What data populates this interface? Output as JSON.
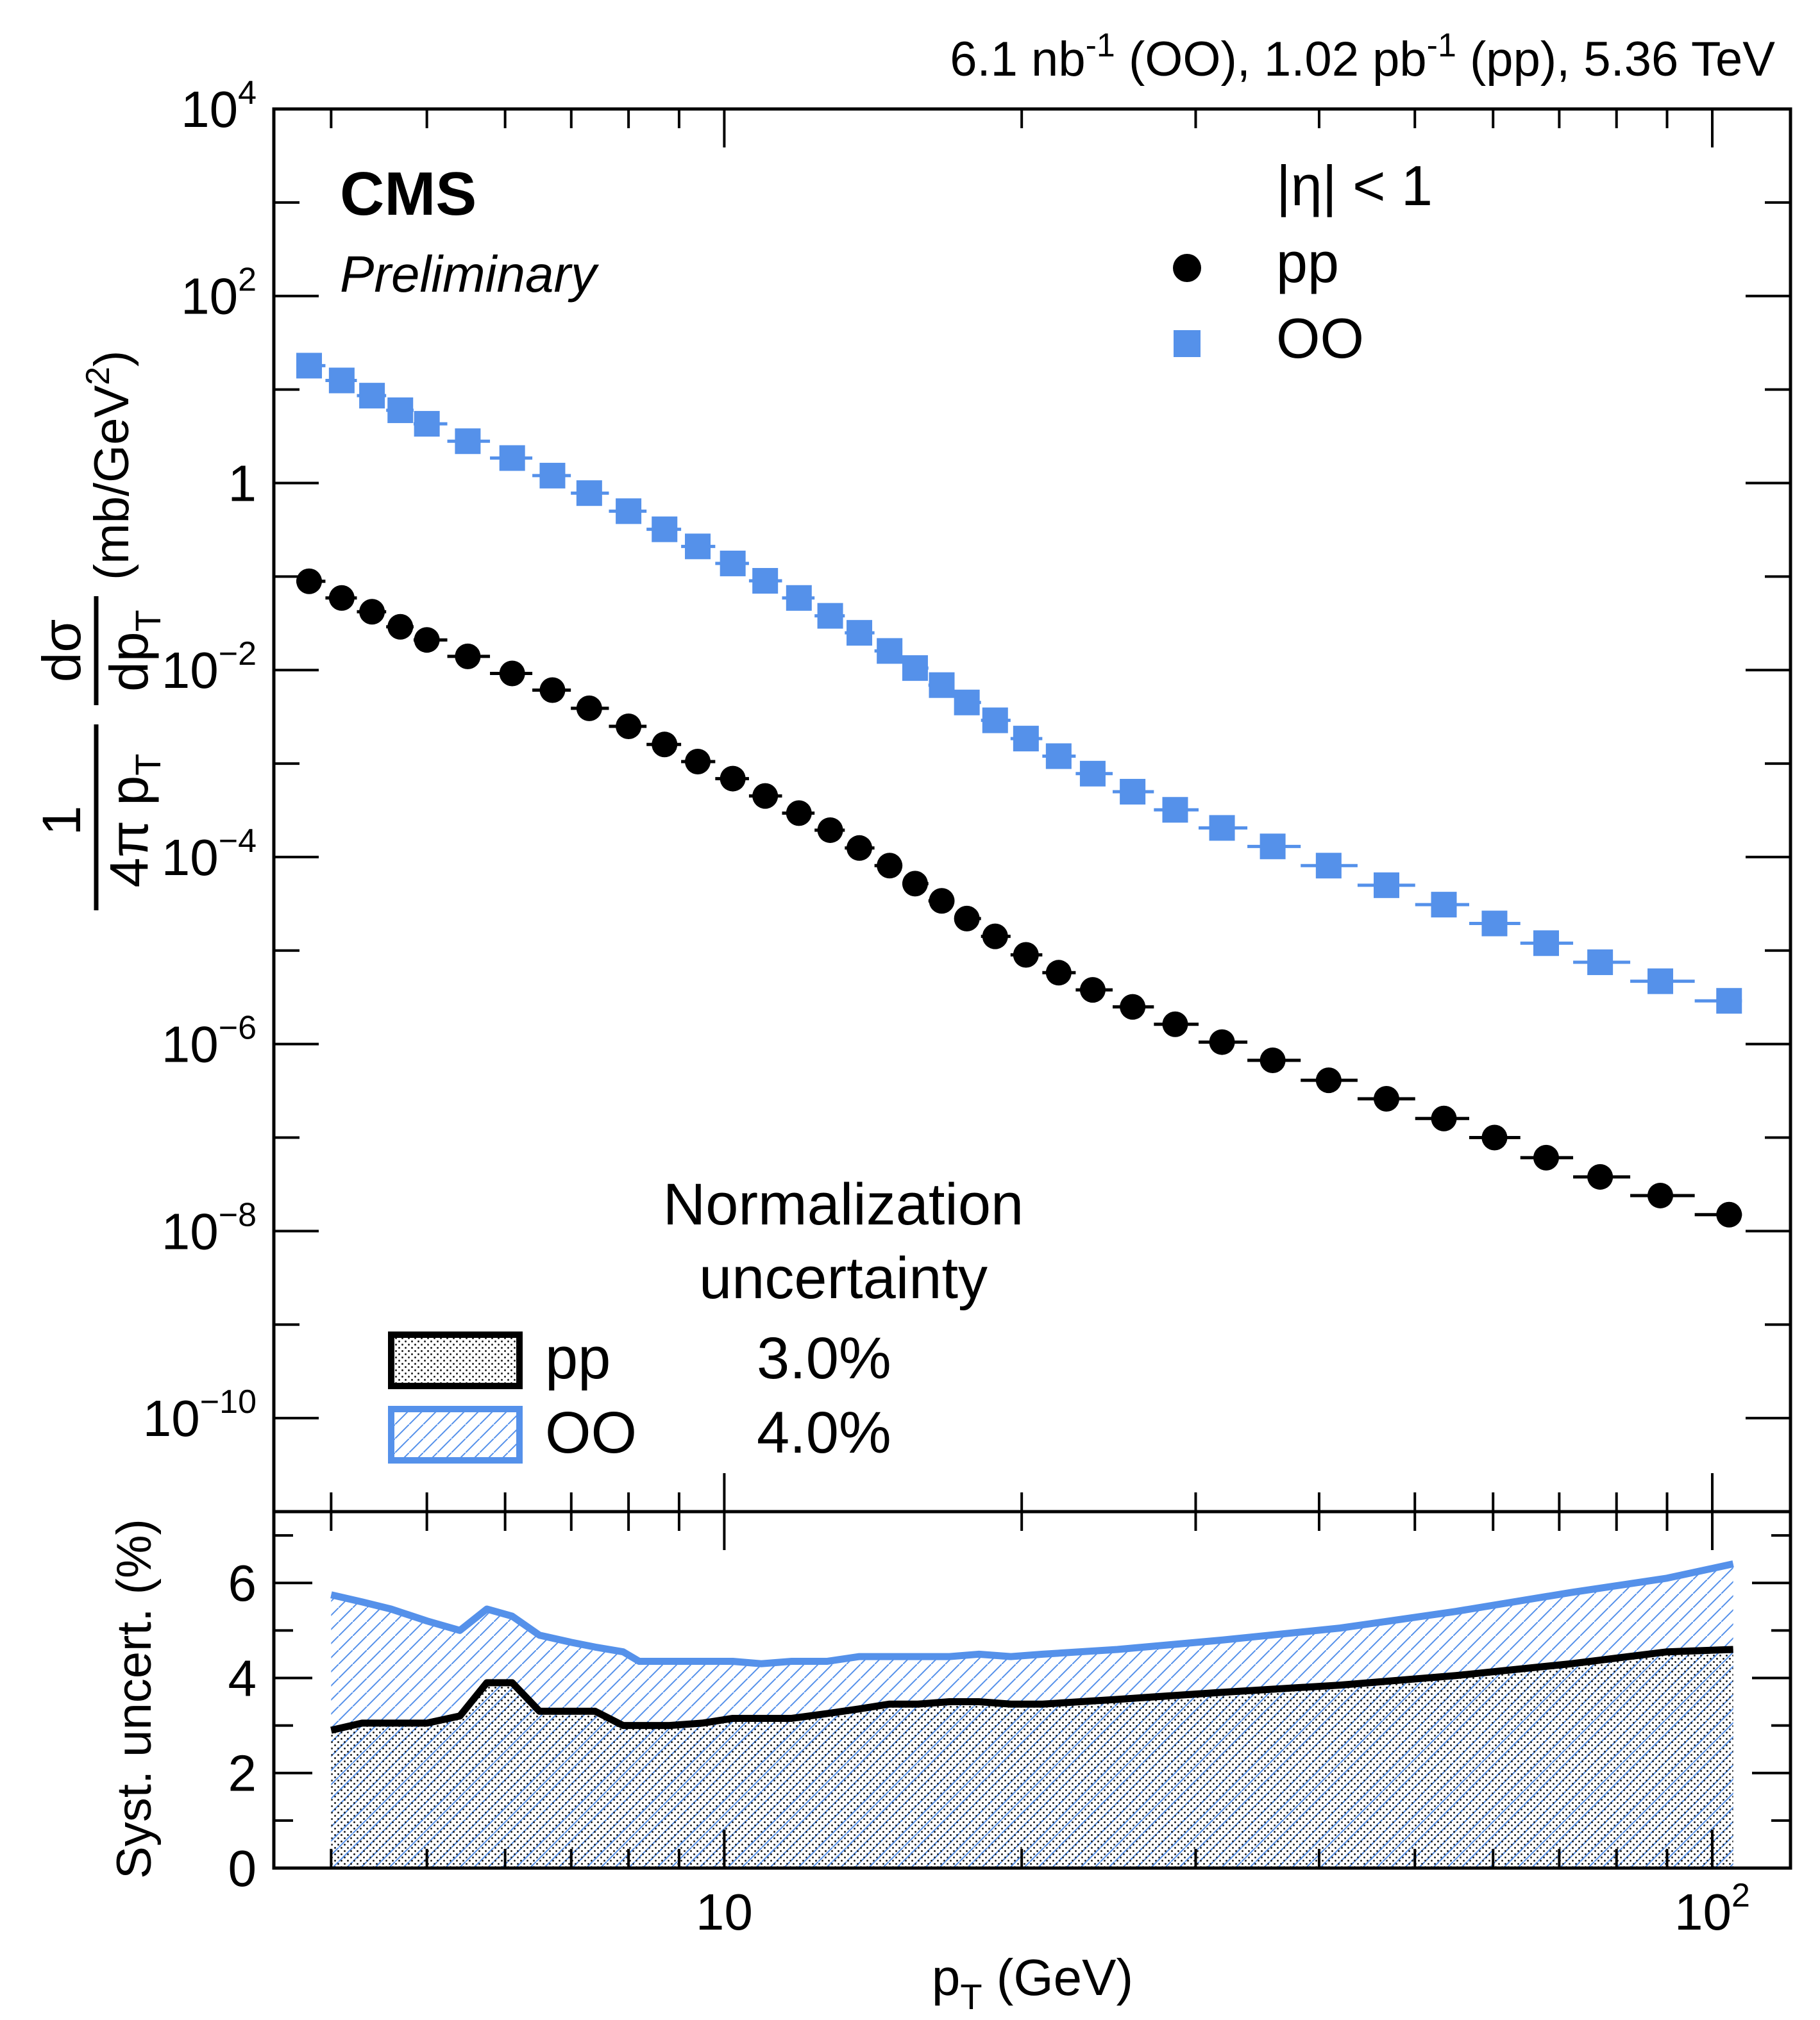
{
  "chart_data": [
    {
      "type": "scatter",
      "panel": "upper",
      "title": "6.1 nb-1 (OO), 1.02 pb-1 (pp), 5.36 TeV",
      "header": {
        "lumi_oo": "6.1 nb",
        "lumi_oo_exp": "-1",
        "lumi_oo_tail": " (OO), ",
        "lumi_pp": "1.02 pb",
        "lumi_pp_exp": "-1",
        "lumi_pp_tail": " (pp), 5.36 TeV"
      },
      "experiment": "CMS",
      "status": "Preliminary",
      "ylabel": "1/(4π pT) dσ/dpT (mb/GeV²)",
      "ylabel_parts": {
        "one": "1",
        "fourpi": "4π",
        "p": "p",
        "T": "T",
        "dsigma": "dσ",
        "dp": "dp",
        "units": "(mb/GeV",
        "units_exp": "2",
        "units_close": ")"
      },
      "yscale": "log",
      "ylim": [
        1e-11,
        10000
      ],
      "xscale": "log",
      "xlim": [
        3.5,
        120
      ],
      "yticks": [
        {
          "value": 10000,
          "base": "10",
          "exp": "4"
        },
        {
          "value": 100,
          "base": "10",
          "exp": "2"
        },
        {
          "value": 1,
          "base": "1",
          "exp": ""
        },
        {
          "value": 0.01,
          "base": "10",
          "exp": "−2"
        },
        {
          "value": 0.0001,
          "base": "10",
          "exp": "−4"
        },
        {
          "value": 1e-06,
          "base": "10",
          "exp": "−6"
        },
        {
          "value": 1e-08,
          "base": "10",
          "exp": "−8"
        },
        {
          "value": 1e-10,
          "base": "10",
          "exp": "−10"
        }
      ],
      "legend": {
        "header": "|η| < 1",
        "entries": [
          {
            "label": "pp",
            "marker": "circle",
            "color": "#000000"
          },
          {
            "label": "OO",
            "marker": "square",
            "color": "#5591ea"
          }
        ],
        "placement": "top-right"
      },
      "normalization": {
        "title_line1": "Normalization",
        "title_line2": "uncertainty",
        "entries": [
          {
            "label": "pp",
            "value": "3.0%",
            "style": "dotted-box",
            "color": "#000000"
          },
          {
            "label": "OO",
            "value": "4.0%",
            "style": "hatched-box",
            "color": "#5591ea"
          }
        ],
        "placement": "bottom-left"
      },
      "series": [
        {
          "name": "pp",
          "color": "#000000",
          "marker": "circle",
          "x": [
            3.8,
            4.1,
            4.4,
            4.7,
            5.0,
            5.5,
            6.1,
            6.7,
            7.3,
            8.0,
            8.7,
            9.4,
            10.2,
            11.0,
            11.9,
            12.8,
            13.7,
            14.7,
            15.6,
            16.6,
            17.6,
            18.8,
            20.2,
            21.8,
            23.6,
            25.9,
            28.6,
            31.9,
            35.9,
            40.9,
            46.8,
            53.5,
            60.2,
            67.9,
            77.0,
            88.6,
            104.0
          ],
          "y": [
            0.089,
            0.059,
            0.042,
            0.029,
            0.021,
            0.014,
            0.0092,
            0.0061,
            0.0039,
            0.0025,
            0.0016,
            0.00105,
            0.00069,
            0.00045,
            0.000295,
            0.000194,
            0.000125,
            8.1e-05,
            5.2e-05,
            3.4e-05,
            2.2e-05,
            1.42e-05,
            9e-06,
            5.8e-06,
            3.8e-06,
            2.5e-06,
            1.63e-06,
            1.05e-06,
            6.7e-07,
            4.1e-07,
            2.6e-07,
            1.6e-07,
            1e-07,
            6.1e-08,
            3.8e-08,
            2.4e-08,
            1.5e-08
          ]
        },
        {
          "name": "OO",
          "color": "#5591ea",
          "marker": "square",
          "x": [
            3.8,
            4.1,
            4.4,
            4.7,
            5.0,
            5.5,
            6.1,
            6.7,
            7.3,
            8.0,
            8.7,
            9.4,
            10.2,
            11.0,
            11.9,
            12.8,
            13.7,
            14.7,
            15.6,
            16.6,
            17.6,
            18.8,
            20.2,
            21.8,
            23.6,
            25.9,
            28.6,
            31.9,
            35.9,
            40.9,
            46.8,
            53.5,
            60.2,
            67.9,
            77.0,
            88.6,
            104.0
          ],
          "y": [
            18.0,
            12.5,
            8.6,
            6.0,
            4.3,
            2.8,
            1.85,
            1.2,
            0.78,
            0.5,
            0.32,
            0.21,
            0.138,
            0.09,
            0.059,
            0.038,
            0.025,
            0.016,
            0.0105,
            0.0069,
            0.0045,
            0.0029,
            0.00185,
            0.0012,
            0.00078,
            0.0005,
            0.00032,
            0.000205,
            0.00013,
            8.1e-05,
            5e-05,
            3.1e-05,
            1.95e-05,
            1.2e-05,
            7.5e-06,
            4.7e-06,
            2.9e-06
          ]
        }
      ]
    },
    {
      "type": "area",
      "panel": "lower",
      "ylabel": "Syst. uncert. (%)",
      "xlabel": "pT (GeV)",
      "xlabel_parts": {
        "p": "p",
        "T": "T",
        "units": " (GeV)"
      },
      "xscale": "log",
      "xlim": [
        3.5,
        120
      ],
      "ylim": [
        0,
        7.5
      ],
      "yticks": [
        0,
        2,
        4,
        6
      ],
      "ytick_labels": [
        "0",
        "2",
        "4",
        "6"
      ],
      "xticks": [
        {
          "value": 10,
          "base": "10",
          "exp": ""
        },
        {
          "value": 100,
          "base": "10",
          "exp": "2"
        }
      ],
      "series": [
        {
          "name": "OO",
          "color": "#5591ea",
          "fill": "hatched",
          "x": [
            4.0,
            4.3,
            4.6,
            5.0,
            5.4,
            5.75,
            6.1,
            6.5,
            7.0,
            7.4,
            7.9,
            8.2,
            8.8,
            9.5,
            10.2,
            10.9,
            11.7,
            12.7,
            13.7,
            14.7,
            15.7,
            16.9,
            18.1,
            19.5,
            21.0,
            25.0,
            32.0,
            42.0,
            55.0,
            72.0,
            90.0,
            105.0
          ],
          "values": [
            5.75,
            5.6,
            5.45,
            5.2,
            5.0,
            5.45,
            5.3,
            4.9,
            4.75,
            4.65,
            4.55,
            4.35,
            4.35,
            4.35,
            4.35,
            4.3,
            4.35,
            4.35,
            4.45,
            4.45,
            4.45,
            4.45,
            4.5,
            4.45,
            4.5,
            4.6,
            4.8,
            5.05,
            5.4,
            5.8,
            6.1,
            6.4
          ]
        },
        {
          "name": "pp",
          "color": "#000000",
          "fill": "dotted",
          "x": [
            4.0,
            4.3,
            4.6,
            5.0,
            5.4,
            5.75,
            6.1,
            6.5,
            7.0,
            7.4,
            7.9,
            8.2,
            8.8,
            9.5,
            10.2,
            10.9,
            11.7,
            12.7,
            13.7,
            14.7,
            15.7,
            16.9,
            18.1,
            19.5,
            21.0,
            25.0,
            32.0,
            42.0,
            55.0,
            72.0,
            90.0,
            105.0
          ],
          "values": [
            2.9,
            3.05,
            3.05,
            3.05,
            3.2,
            3.9,
            3.9,
            3.3,
            3.3,
            3.3,
            3.0,
            3.0,
            3.0,
            3.05,
            3.15,
            3.15,
            3.15,
            3.25,
            3.35,
            3.45,
            3.45,
            3.5,
            3.5,
            3.45,
            3.45,
            3.55,
            3.7,
            3.85,
            4.05,
            4.3,
            4.55,
            4.6
          ]
        }
      ]
    }
  ]
}
